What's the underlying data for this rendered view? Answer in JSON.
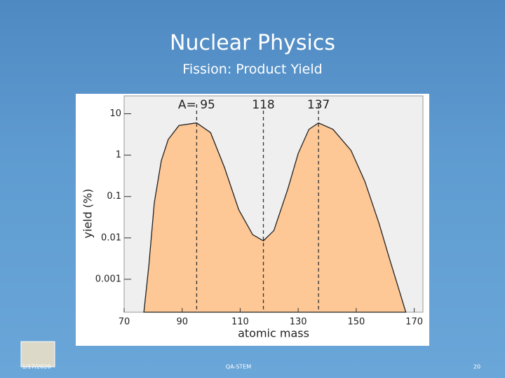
{
  "title": "Nuclear Physics",
  "subtitle": "Fission: Product Yield",
  "footer": {
    "date": "1/17/2020",
    "center": "QA-STEM",
    "page": "20"
  },
  "chart_data": {
    "type": "area",
    "x": [
      76.8,
      78.5,
      80.4,
      82.8,
      85.2,
      88.9,
      95,
      99.8,
      104.6,
      109.5,
      114.3,
      118,
      121.6,
      126.4,
      130,
      133.7,
      137,
      142,
      148.2,
      153,
      157.9,
      161.5,
      165.2,
      167.1
    ],
    "values": [
      0.00016,
      0.0021,
      0.071,
      0.73,
      2.4,
      5.2,
      6.0,
      3.5,
      0.5,
      0.048,
      0.012,
      0.0085,
      0.015,
      0.15,
      1.1,
      4.2,
      6.0,
      4.2,
      1.3,
      0.23,
      0.022,
      0.0031,
      0.00044,
      0.00016
    ],
    "color": "#fdc796",
    "x_label": "atomic mass",
    "y_label": "yield (%)",
    "xlim": [
      70,
      173
    ],
    "xticks": [
      70,
      90,
      110,
      130,
      150,
      170
    ],
    "ylim": [
      0.00016,
      27
    ],
    "yticks": [
      10,
      1,
      0.1,
      0.01,
      0.001
    ],
    "y_scale": "log",
    "markers": [
      {
        "x": 95,
        "label": "A= 95"
      },
      {
        "x": 118,
        "label": "118"
      },
      {
        "x": 137,
        "label": "137"
      }
    ]
  }
}
